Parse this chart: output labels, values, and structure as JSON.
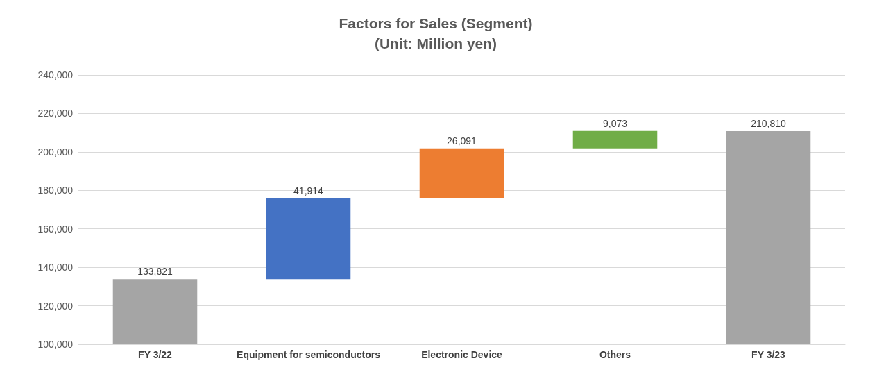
{
  "chart_data": {
    "type": "bar",
    "title": "Factors for Sales (Segment)",
    "subtitle": "(Unit: Million yen)",
    "categories": [
      "FY 3/22",
      "Equipment for semiconductors",
      "Electronic Device",
      "Others",
      "FY 3/23"
    ],
    "values": [
      133821,
      41914,
      26091,
      9073,
      210810
    ],
    "value_labels": [
      "133,821",
      "41,914",
      "26,091",
      "9,073",
      "210,810"
    ],
    "base": [
      0,
      133821,
      175735,
      201826,
      0
    ],
    "colors": [
      "#a5a5a5",
      "#4472c4",
      "#ed7d31",
      "#70ad47",
      "#a5a5a5"
    ],
    "ylim": [
      100000,
      240000
    ],
    "yticks": [
      {
        "value": 100000,
        "label": "100,000"
      },
      {
        "value": 120000,
        "label": "120,000"
      },
      {
        "value": 140000,
        "label": "140,000"
      },
      {
        "value": 160000,
        "label": "160,000"
      },
      {
        "value": 180000,
        "label": "180,000"
      },
      {
        "value": 200000,
        "label": "200,000"
      },
      {
        "value": 220000,
        "label": "220,000"
      },
      {
        "value": 240000,
        "label": "240,000"
      }
    ],
    "grid": "y"
  }
}
